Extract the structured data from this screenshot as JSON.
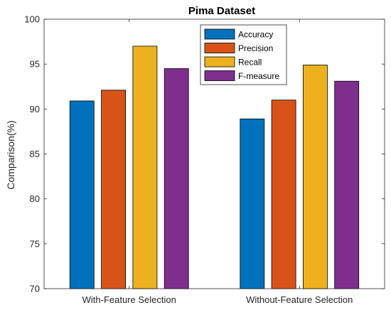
{
  "chart_data": {
    "type": "bar",
    "title": "Pima Dataset",
    "xlabel": "",
    "ylabel": "Comparison(%)",
    "categories": [
      "With-Feature Selection",
      "Without-Feature Selection"
    ],
    "series": [
      {
        "name": "Accuracy",
        "values": [
          90.9,
          88.9
        ],
        "color": "#0072BD"
      },
      {
        "name": "Precision",
        "values": [
          92.1,
          91.0
        ],
        "color": "#D95319"
      },
      {
        "name": "Recall",
        "values": [
          97.0,
          94.9
        ],
        "color": "#EDB120"
      },
      {
        "name": "F-measure",
        "values": [
          94.5,
          93.1
        ],
        "color": "#7E2F8E"
      }
    ],
    "ylim": [
      70,
      100
    ],
    "yticks": [
      "70",
      "75",
      "80",
      "85",
      "90",
      "95",
      "100"
    ],
    "grid": false,
    "legend_placement": "top-right"
  }
}
